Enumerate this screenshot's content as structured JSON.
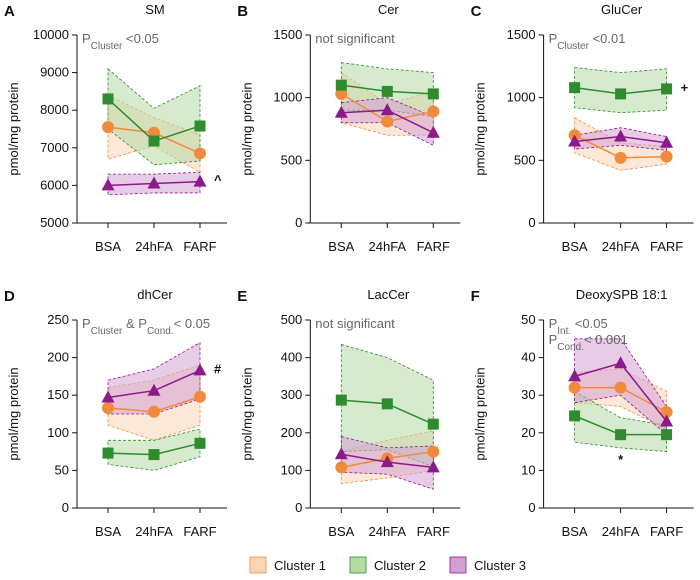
{
  "chart_data": [
    {
      "type": "line",
      "panel": "A",
      "title": "SM",
      "y_label": "pmol/mg protein",
      "annotation": [
        [
          {
            "text": "P"
          },
          {
            "text": "Cluster",
            "sub": true
          },
          {
            "text": " <0.05"
          }
        ]
      ],
      "point_notes": [
        {
          "text": "^",
          "series": 2,
          "index": 2
        }
      ],
      "categories": [
        "BSA",
        "24hFA",
        "FARF"
      ],
      "ylim": [
        5000,
        10000
      ],
      "yticks": [
        5000,
        6000,
        7000,
        8000,
        9000,
        10000
      ],
      "series": [
        {
          "name": "Cluster 1",
          "color": "#f08a3c",
          "band_color": "#fbd3b5",
          "marker": "circle",
          "values": [
            7550,
            7400,
            6850
          ],
          "lower": [
            6700,
            7050,
            6350
          ],
          "upper": [
            8400,
            7800,
            7350
          ]
        },
        {
          "name": "Cluster 2",
          "color": "#2e8b2e",
          "band_color": "#b5dba5",
          "marker": "square",
          "values": [
            8300,
            7180,
            7580
          ],
          "lower": [
            7500,
            6550,
            6650
          ],
          "upper": [
            9100,
            8050,
            8650
          ]
        },
        {
          "name": "Cluster 3",
          "color": "#8b1a8b",
          "band_color": "#d3a0d3",
          "marker": "triangle",
          "values": [
            6000,
            6050,
            6100
          ],
          "lower": [
            5750,
            5800,
            5800
          ],
          "upper": [
            6300,
            6300,
            6350
          ]
        }
      ]
    },
    {
      "type": "line",
      "panel": "B",
      "title": "Cer",
      "y_label": "pmol/mg protein",
      "annotation": [
        [
          {
            "text": "not significant"
          }
        ]
      ],
      "point_notes": [],
      "categories": [
        "BSA",
        "24hFA",
        "FARF"
      ],
      "ylim": [
        0,
        1500
      ],
      "yticks": [
        0,
        500,
        1000,
        1500
      ],
      "series": [
        {
          "name": "Cluster 1",
          "color": "#f08a3c",
          "band_color": "#fbd3b5",
          "marker": "circle",
          "values": [
            1030,
            810,
            890
          ],
          "lower": [
            800,
            700,
            700
          ],
          "upper": [
            1200,
            950,
            1050
          ]
        },
        {
          "name": "Cluster 2",
          "color": "#2e8b2e",
          "band_color": "#b5dba5",
          "marker": "square",
          "values": [
            1100,
            1050,
            1030
          ],
          "lower": [
            900,
            900,
            850
          ],
          "upper": [
            1280,
            1230,
            1200
          ]
        },
        {
          "name": "Cluster 3",
          "color": "#8b1a8b",
          "band_color": "#d3a0d3",
          "marker": "triangle",
          "values": [
            880,
            900,
            720
          ],
          "lower": [
            800,
            800,
            620
          ],
          "upper": [
            960,
            1000,
            850
          ]
        }
      ]
    },
    {
      "type": "line",
      "panel": "C",
      "title": "GluCer",
      "y_label": "pmol/mg protein",
      "annotation": [
        [
          {
            "text": "P"
          },
          {
            "text": "Cluster",
            "sub": true
          },
          {
            "text": " <0.01"
          }
        ]
      ],
      "point_notes": [
        {
          "text": "+",
          "series": 1,
          "index": 2
        }
      ],
      "categories": [
        "BSA",
        "24hFA",
        "FARF"
      ],
      "ylim": [
        0,
        1500
      ],
      "yticks": [
        0,
        500,
        1000,
        1500
      ],
      "series": [
        {
          "name": "Cluster 1",
          "color": "#f08a3c",
          "band_color": "#fbd3b5",
          "marker": "circle",
          "values": [
            700,
            520,
            530
          ],
          "lower": [
            560,
            420,
            470
          ],
          "upper": [
            840,
            640,
            610
          ]
        },
        {
          "name": "Cluster 2",
          "color": "#2e8b2e",
          "band_color": "#b5dba5",
          "marker": "square",
          "values": [
            1080,
            1030,
            1070
          ],
          "lower": [
            920,
            880,
            900
          ],
          "upper": [
            1240,
            1200,
            1230
          ]
        },
        {
          "name": "Cluster 3",
          "color": "#8b1a8b",
          "band_color": "#d3a0d3",
          "marker": "triangle",
          "values": [
            650,
            690,
            640
          ],
          "lower": [
            590,
            620,
            580
          ],
          "upper": [
            700,
            760,
            690
          ]
        }
      ]
    },
    {
      "type": "line",
      "panel": "D",
      "title": "dhCer",
      "y_label": "pmol/mg protein",
      "annotation": [
        [
          {
            "text": "P"
          },
          {
            "text": "Cluster",
            "sub": true
          },
          {
            "text": " & P"
          },
          {
            "text": "Cond.",
            "sub": true
          },
          {
            "text": "< 0.05"
          }
        ]
      ],
      "point_notes": [
        {
          "text": "#",
          "series": 2,
          "index": 2
        }
      ],
      "categories": [
        "BSA",
        "24hFA",
        "FARF"
      ],
      "ylim": [
        0,
        250
      ],
      "yticks": [
        0,
        50,
        100,
        150,
        200,
        250
      ],
      "series": [
        {
          "name": "Cluster 1",
          "color": "#f08a3c",
          "band_color": "#fbd3b5",
          "marker": "circle",
          "values": [
            133,
            128,
            148
          ],
          "lower": [
            110,
            90,
            110
          ],
          "upper": [
            160,
            170,
            190
          ]
        },
        {
          "name": "Cluster 2",
          "color": "#2e8b2e",
          "band_color": "#b5dba5",
          "marker": "square",
          "values": [
            73,
            71,
            86
          ],
          "lower": [
            58,
            50,
            68
          ],
          "upper": [
            90,
            90,
            105
          ]
        },
        {
          "name": "Cluster 3",
          "color": "#8b1a8b",
          "band_color": "#d3a0d3",
          "marker": "triangle",
          "values": [
            147,
            156,
            183
          ],
          "lower": [
            125,
            125,
            145
          ],
          "upper": [
            170,
            185,
            220
          ]
        }
      ]
    },
    {
      "type": "line",
      "panel": "E",
      "title": "LacCer",
      "y_label": "pmol/mg protein",
      "annotation": [
        [
          {
            "text": "not significant"
          }
        ]
      ],
      "point_notes": [],
      "categories": [
        "BSA",
        "24hFA",
        "FARF"
      ],
      "ylim": [
        0,
        500
      ],
      "yticks": [
        0,
        100,
        200,
        300,
        400,
        500
      ],
      "series": [
        {
          "name": "Cluster 1",
          "color": "#f08a3c",
          "band_color": "#fbd3b5",
          "marker": "circle",
          "values": [
            108,
            132,
            150
          ],
          "lower": [
            65,
            80,
            100
          ],
          "upper": [
            150,
            180,
            205
          ]
        },
        {
          "name": "Cluster 2",
          "color": "#2e8b2e",
          "band_color": "#b5dba5",
          "marker": "square",
          "values": [
            287,
            277,
            223
          ],
          "lower": [
            150,
            155,
            110
          ],
          "upper": [
            435,
            400,
            340
          ]
        },
        {
          "name": "Cluster 3",
          "color": "#8b1a8b",
          "band_color": "#d3a0d3",
          "marker": "triangle",
          "values": [
            143,
            122,
            108
          ],
          "lower": [
            95,
            90,
            50
          ],
          "upper": [
            190,
            160,
            165
          ]
        }
      ]
    },
    {
      "type": "line",
      "panel": "F",
      "title": "DeoxySPB 18:1",
      "y_label": "pmol/mg protein",
      "annotation": [
        [
          {
            "text": "P"
          },
          {
            "text": "Int.",
            "sub": true
          },
          {
            "text": " <0.05"
          }
        ],
        [
          {
            "text": "P"
          },
          {
            "text": "Cond.",
            "sub": true
          },
          {
            "text": "< 0.001"
          }
        ]
      ],
      "point_notes": [
        {
          "text": "*",
          "series": 1,
          "index": 1
        }
      ],
      "categories": [
        "BSA",
        "24hFA",
        "FARF"
      ],
      "ylim": [
        0,
        50
      ],
      "yticks": [
        0,
        10,
        20,
        30,
        40,
        50
      ],
      "series": [
        {
          "name": "Cluster 1",
          "color": "#f08a3c",
          "band_color": "#fbd3b5",
          "marker": "circle",
          "values": [
            32,
            32,
            25.5
          ],
          "lower": [
            28,
            27,
            21
          ],
          "upper": [
            36,
            37,
            31
          ]
        },
        {
          "name": "Cluster 2",
          "color": "#2e8b2e",
          "band_color": "#b5dba5",
          "marker": "square",
          "values": [
            24.5,
            19.5,
            19.5
          ],
          "lower": [
            17.5,
            16,
            15
          ],
          "upper": [
            31,
            24,
            22
          ]
        },
        {
          "name": "Cluster 3",
          "color": "#8b1a8b",
          "band_color": "#d3a0d3",
          "marker": "triangle",
          "values": [
            35,
            38.5,
            23
          ],
          "lower": [
            28,
            30,
            19.5
          ],
          "upper": [
            45,
            45,
            27
          ]
        }
      ]
    }
  ]
}
